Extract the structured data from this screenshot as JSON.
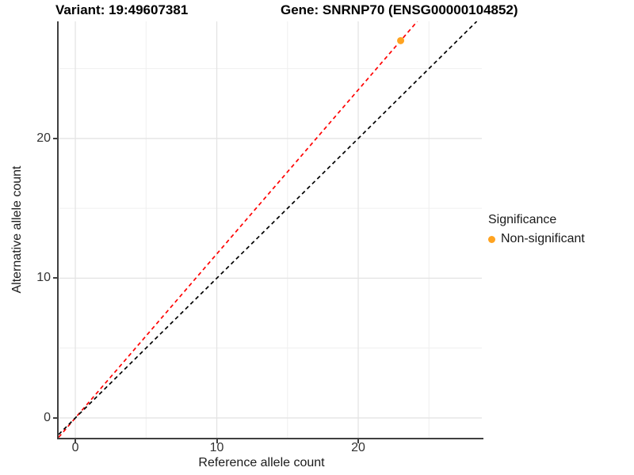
{
  "header": {
    "variant_title": "Variant: 19:49607381",
    "gene_title": "Gene: SNRNP70 (ENSG00000104852)"
  },
  "chart_data": {
    "type": "scatter",
    "xlabel": "Reference allele count",
    "ylabel": "Alternative allele count",
    "xlim": [
      -1.18,
      28.74
    ],
    "ylim": [
      -1.42,
      28.38
    ],
    "x_major_ticks": [
      0,
      10,
      20
    ],
    "y_major_ticks": [
      0,
      10,
      20
    ],
    "x_minor_ticks": [
      5,
      15,
      25
    ],
    "y_minor_ticks": [
      5,
      15,
      25
    ],
    "grid": "major and minor gridlines on white background",
    "points": [
      {
        "x": 23,
        "y": 27,
        "series": "Non-significant"
      }
    ],
    "point_color": "#FFA320",
    "point_radius_px": 4.5,
    "lines": [
      {
        "name": "allelic-ratio-line",
        "slope": 1.1739,
        "intercept": 0,
        "style": "dashed",
        "color": "#FF0000"
      },
      {
        "name": "identity-line",
        "slope": 1.0,
        "intercept": 0,
        "style": "dashed",
        "color": "#000000"
      }
    ],
    "legend": {
      "title": "Significance",
      "items": [
        {
          "label": "Non-significant",
          "color": "#FFA320"
        }
      ]
    },
    "colors": {
      "grid_major": "#E4E4E4",
      "grid_minor": "#EFEFEF",
      "axis": "#404040",
      "tick_text": "#333333"
    }
  }
}
